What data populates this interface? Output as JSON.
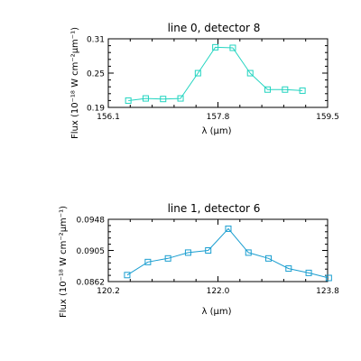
{
  "chart_data": [
    {
      "type": "line",
      "title": "line 0, detector 8",
      "xlabel": "λ (μm)",
      "ylabel": "Flux (10⁻¹⁸ W cm⁻²μm⁻¹)",
      "xlim": [
        156.1,
        159.5
      ],
      "ylim": [
        0.19,
        0.31
      ],
      "xticks": [
        "156.1",
        "157.8",
        "159.5"
      ],
      "yticks": [
        "0.31",
        "0.25",
        "0.19"
      ],
      "color": "#22d4c0",
      "marker": "square",
      "series": [
        {
          "x": [
            156.41,
            156.68,
            156.95,
            157.22,
            157.49,
            157.76,
            158.03,
            158.3,
            158.57,
            158.84,
            159.11
          ],
          "y": [
            0.2019,
            0.2057,
            0.2047,
            0.2057,
            0.2499,
            0.2952,
            0.2942,
            0.2499,
            0.2212,
            0.2212,
            0.2193
          ]
        }
      ]
    },
    {
      "type": "line",
      "title": "line 1, detector 6",
      "xlabel": "λ (μm)",
      "ylabel": "Flux (10⁻¹⁸ W cm⁻²μm⁻¹)",
      "xlim": [
        120.2,
        123.8
      ],
      "ylim": [
        0.0862,
        0.0948
      ],
      "xticks": [
        "120.2",
        "122.0",
        "123.8"
      ],
      "yticks": [
        "0.0948",
        "0.0905",
        "0.0862"
      ],
      "color": "#1a9ed0",
      "marker": "square",
      "series": [
        {
          "x": [
            120.51,
            120.85,
            121.18,
            121.51,
            121.84,
            122.17,
            122.5,
            122.83,
            123.16,
            123.49,
            123.82
          ],
          "y": [
            0.0871,
            0.0889,
            0.0894,
            0.0902,
            0.0905,
            0.0935,
            0.0902,
            0.0894,
            0.088,
            0.0874,
            0.0867
          ]
        }
      ]
    }
  ]
}
